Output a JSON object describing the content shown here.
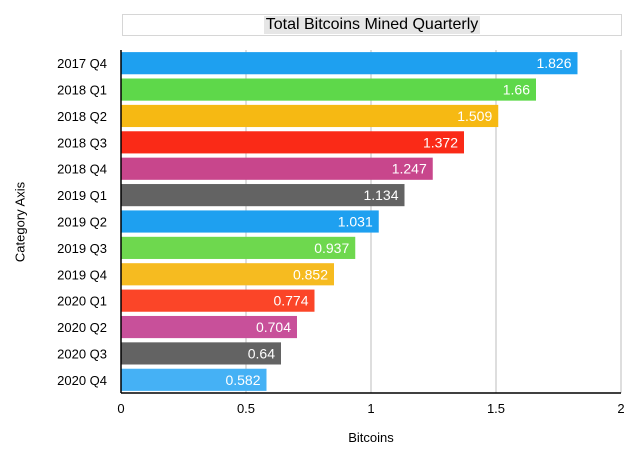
{
  "chart_data": {
    "type": "bar",
    "orientation": "horizontal",
    "title": "Total Bitcoins Mined Quarterly",
    "xlabel": "Bitcoins",
    "ylabel": "Category Axis",
    "xlim": [
      0,
      2
    ],
    "xticks": [
      "0",
      "0.5",
      "1",
      "1.5",
      "2"
    ],
    "grid": true,
    "categories": [
      "2017 Q4",
      "2018 Q1",
      "2018 Q2",
      "2018 Q3",
      "2018 Q4",
      "2019 Q1",
      "2019 Q2",
      "2019 Q3",
      "2019 Q4",
      "2020 Q1",
      "2020 Q2",
      "2020 Q3",
      "2020 Q4"
    ],
    "values": [
      1.826,
      1.66,
      1.509,
      1.372,
      1.247,
      1.134,
      1.031,
      0.937,
      0.852,
      0.774,
      0.704,
      0.64,
      0.582
    ],
    "data_labels": [
      "1.826",
      "1.66",
      "1.509",
      "1.372",
      "1.247",
      "1.134",
      "1.031",
      "0.937",
      "0.852",
      "0.774",
      "0.704",
      "0.64",
      "0.582"
    ],
    "colors": [
      "#1ea0f0",
      "#5ed84a",
      "#f6b913",
      "#fa2a17",
      "#c8468c",
      "#636363",
      "#1ea0f0",
      "#6ed84e",
      "#f6bb20",
      "#fb4528",
      "#c8509a",
      "#636363",
      "#45b1f5"
    ]
  }
}
